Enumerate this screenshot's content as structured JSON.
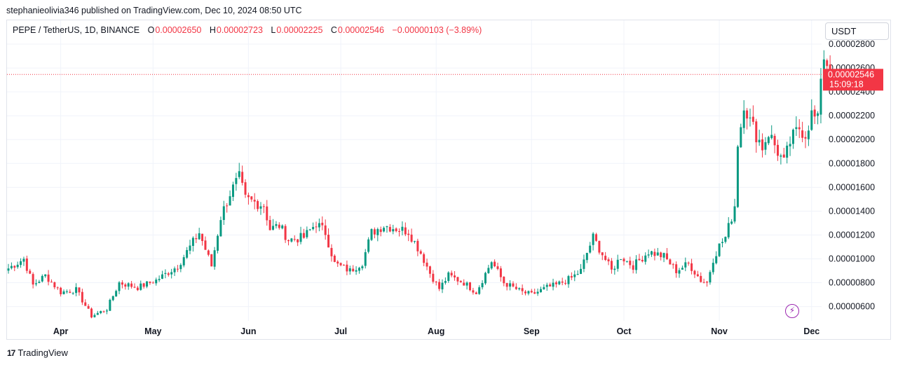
{
  "header": {
    "published_line": "stephanieolivia346 published on TradingView.com, Dec 10, 2024 08:50 UTC"
  },
  "legend": {
    "symbol": "PEPE / TetherUS, 1D, BINANCE",
    "open_label": "O",
    "open_value": "0.00002650",
    "high_label": "H",
    "high_value": "0.00002723",
    "low_label": "L",
    "low_value": "0.00002225",
    "close_label": "C",
    "close_value": "0.00002546",
    "change": "−0.00000103 (−3.89%)"
  },
  "currency_button": "USDT",
  "price_tag": {
    "price": "0.00002546",
    "countdown": "15:09:18"
  },
  "footer": {
    "brand": "TradingView",
    "brand_mark": "17"
  },
  "colors": {
    "up": "#089981",
    "down": "#f23645",
    "grid": "#f0f3fa",
    "axis_text": "#131722",
    "accent": "#9c27b0"
  },
  "icons": {
    "alert": "lightning-bolt-icon"
  },
  "chart_data": {
    "type": "candlestick",
    "title": "PEPE / TetherUS, 1D, BINANCE",
    "ylim": [
      4.8e-06,
      3e-05
    ],
    "y_ticks": [
      "0.00000600",
      "0.00000800",
      "0.00001000",
      "0.00001200",
      "0.00001400",
      "0.00001600",
      "0.00001800",
      "0.00002000",
      "0.00002200",
      "0.00002400",
      "0.00002600",
      "0.00002800"
    ],
    "y_tick_values": [
      6e-06,
      8e-06,
      1e-05,
      1.2e-05,
      1.4e-05,
      1.6e-05,
      1.8e-05,
      2e-05,
      2.2e-05,
      2.4e-05,
      2.6e-05,
      2.8e-05
    ],
    "x_ticks": [
      "Apr",
      "May",
      "Jun",
      "Jul",
      "Aug",
      "Sep",
      "Oct",
      "Nov",
      "Dec"
    ],
    "x_tick_indices": [
      17,
      47,
      78,
      108,
      139,
      170,
      200,
      231,
      261
    ],
    "last_price": 2.546e-05,
    "grid": true,
    "anchors": [
      [
        0,
        9.2e-06
      ],
      [
        5,
        1e-05
      ],
      [
        8,
        7.8e-06
      ],
      [
        12,
        8.6e-06
      ],
      [
        17,
        7.2e-06
      ],
      [
        22,
        7.4e-06
      ],
      [
        27,
        5.2e-06
      ],
      [
        32,
        5.8e-06
      ],
      [
        36,
        8e-06
      ],
      [
        42,
        7.6e-06
      ],
      [
        48,
        8.2e-06
      ],
      [
        55,
        9.4e-06
      ],
      [
        62,
        1.22e-05
      ],
      [
        66,
        9.4e-06
      ],
      [
        69,
        1.35e-05
      ],
      [
        72,
        1.55e-05
      ],
      [
        75,
        1.68e-05
      ],
      [
        77,
        1.5e-05
      ],
      [
        83,
        1.45e-05
      ],
      [
        85,
        1.25e-05
      ],
      [
        88,
        1.28e-05
      ],
      [
        91,
        1.16e-05
      ],
      [
        96,
        1.18e-05
      ],
      [
        100,
        1.3e-05
      ],
      [
        103,
        1.22e-05
      ],
      [
        106,
        9.6e-06
      ],
      [
        111,
        9e-06
      ],
      [
        115,
        9.7e-06
      ],
      [
        118,
        1.22e-05
      ],
      [
        122,
        1.28e-05
      ],
      [
        127,
        1.25e-05
      ],
      [
        130,
        1.23e-05
      ],
      [
        134,
        1.05e-05
      ],
      [
        137,
        8.8e-06
      ],
      [
        140,
        7.5e-06
      ],
      [
        143,
        8.6e-06
      ],
      [
        148,
        8e-06
      ],
      [
        152,
        7.2e-06
      ],
      [
        157,
        9.8e-06
      ],
      [
        161,
        8e-06
      ],
      [
        167,
        7.2e-06
      ],
      [
        170,
        7e-06
      ],
      [
        175,
        7.6e-06
      ],
      [
        178,
        7.8e-06
      ],
      [
        183,
        8.4e-06
      ],
      [
        186,
        9e-06
      ],
      [
        188,
        1.05e-05
      ],
      [
        190,
        1.18e-05
      ],
      [
        193,
        1.04e-05
      ],
      [
        196,
        9e-06
      ],
      [
        199,
        1.02e-05
      ],
      [
        203,
        9.4e-06
      ],
      [
        208,
        1.06e-05
      ],
      [
        213,
        1.02e-05
      ],
      [
        217,
        9e-06
      ],
      [
        221,
        9.6e-06
      ],
      [
        225,
        8.2e-06
      ],
      [
        227,
        8e-06
      ],
      [
        229,
        1e-05
      ],
      [
        231,
        1.11e-05
      ],
      [
        233,
        1.18e-05
      ],
      [
        235,
        1.35e-05
      ],
      [
        236,
        1.45e-05
      ],
      [
        237,
        1.98e-05
      ],
      [
        238,
        2.12e-05
      ],
      [
        239,
        2.32e-05
      ],
      [
        241,
        2.15e-05
      ],
      [
        245,
        1.94e-05
      ],
      [
        247,
        2.06e-05
      ],
      [
        250,
        1.9e-05
      ],
      [
        252,
        1.8e-05
      ],
      [
        254,
        1.98e-05
      ],
      [
        257,
        2.1e-05
      ],
      [
        259,
        2.05e-05
      ],
      [
        261,
        2.21e-05
      ],
      [
        263,
        2.15e-05
      ],
      [
        264,
        2.55e-05
      ],
      [
        265,
        2.7e-05
      ],
      [
        266,
        2.65e-05
      ],
      [
        267,
        2.55e-05
      ]
    ]
  }
}
